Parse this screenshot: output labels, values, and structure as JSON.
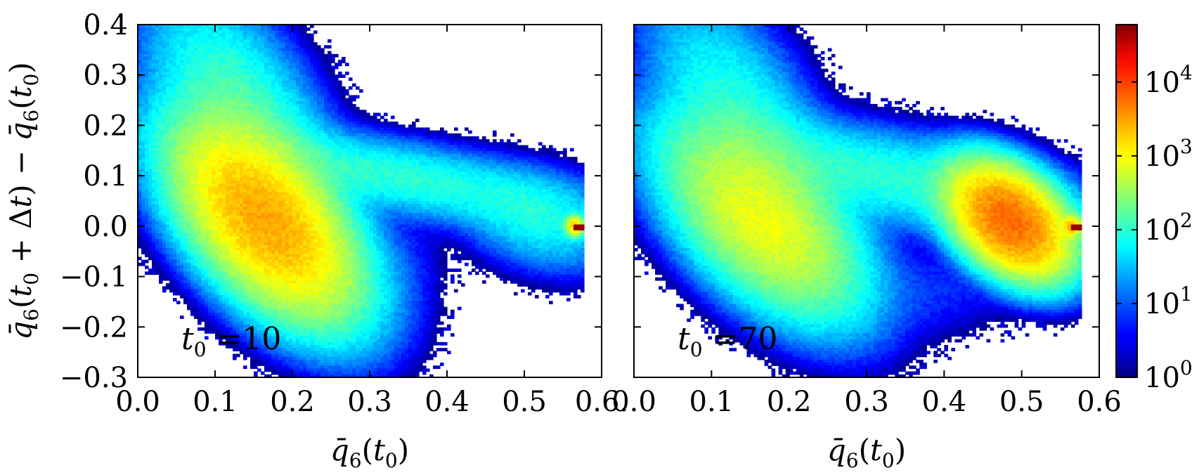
{
  "chart_data": [
    {
      "type": "heatmap",
      "panel": "left",
      "xlim": [
        0.0,
        0.6
      ],
      "ylim": [
        -0.3,
        0.4
      ],
      "x_ticks": [
        "0.0",
        "0.1",
        "0.2",
        "0.3",
        "0.4",
        "0.5",
        "0.6."
      ],
      "y_ticks": [
        "0.4",
        "0.3",
        "0.2",
        "0.1",
        "0.0",
        "−0.1",
        "−0.2",
        "−0.3"
      ],
      "xlabel": "q̄6(t0)",
      "ylabel": "q̄6(t0 + Δt) − q̄6(t0)",
      "annotation": "t0 =10",
      "blobs": [
        {
          "x": 0.165,
          "y": 0.01,
          "sx": 0.055,
          "sy": 0.09,
          "rho": -0.55,
          "logc": 3.4
        },
        {
          "x": 0.14,
          "y": 0.2,
          "sx": 0.06,
          "sy": 0.13,
          "rho": -0.6,
          "logc": 2.2
        },
        {
          "x": 0.33,
          "y": 0.1,
          "sx": 0.13,
          "sy": 0.05,
          "rho": -0.7,
          "logc": 2.0
        },
        {
          "x": 0.52,
          "y": 0.01,
          "sx": 0.05,
          "sy": 0.05,
          "rho": -0.3,
          "logc": 1.8
        },
        {
          "x": 0.565,
          "y": 0.0,
          "sx": 0.006,
          "sy": 0.01,
          "rho": 0.0,
          "logc": 3.2
        },
        {
          "x": 0.34,
          "y": -0.1,
          "sx": 0.03,
          "sy": 0.08,
          "rho": 0.0,
          "logc": 0.8
        }
      ],
      "peak": [
        0.57,
        0.0
      ]
    },
    {
      "type": "heatmap",
      "panel": "right",
      "xlim": [
        0.0,
        0.6
      ],
      "ylim": [
        -0.3,
        0.4
      ],
      "x_ticks": [
        "0.0",
        "0.1",
        "0.2",
        "0.3",
        "0.4",
        "0.5",
        "0.6"
      ],
      "xlabel": "q̄6(t0)",
      "annotation": "t0 =70",
      "blobs": [
        {
          "x": 0.165,
          "y": 0.01,
          "sx": 0.06,
          "sy": 0.09,
          "rho": -0.55,
          "logc": 2.9
        },
        {
          "x": 0.14,
          "y": 0.2,
          "sx": 0.06,
          "sy": 0.13,
          "rho": -0.6,
          "logc": 2.0
        },
        {
          "x": 0.32,
          "y": 0.1,
          "sx": 0.14,
          "sy": 0.06,
          "rho": -0.65,
          "logc": 2.0
        },
        {
          "x": 0.485,
          "y": 0.01,
          "sx": 0.035,
          "sy": 0.05,
          "rho": -0.4,
          "logc": 3.7
        },
        {
          "x": 0.565,
          "y": 0.0,
          "sx": 0.006,
          "sy": 0.01,
          "rho": 0.0,
          "logc": 3.3
        },
        {
          "x": 0.38,
          "y": -0.13,
          "sx": 0.06,
          "sy": 0.05,
          "rho": 0.0,
          "logc": 0.8
        }
      ],
      "peak": [
        0.57,
        0.0
      ]
    }
  ],
  "colorbar": {
    "scale": "log",
    "range": [
      1,
      60000
    ],
    "colormap": "jet",
    "ticks": [
      {
        "base": "10",
        "exp": "0"
      },
      {
        "base": "10",
        "exp": "1"
      },
      {
        "base": "10",
        "exp": "2"
      },
      {
        "base": "10",
        "exp": "3"
      },
      {
        "base": "10",
        "exp": "4"
      }
    ]
  }
}
